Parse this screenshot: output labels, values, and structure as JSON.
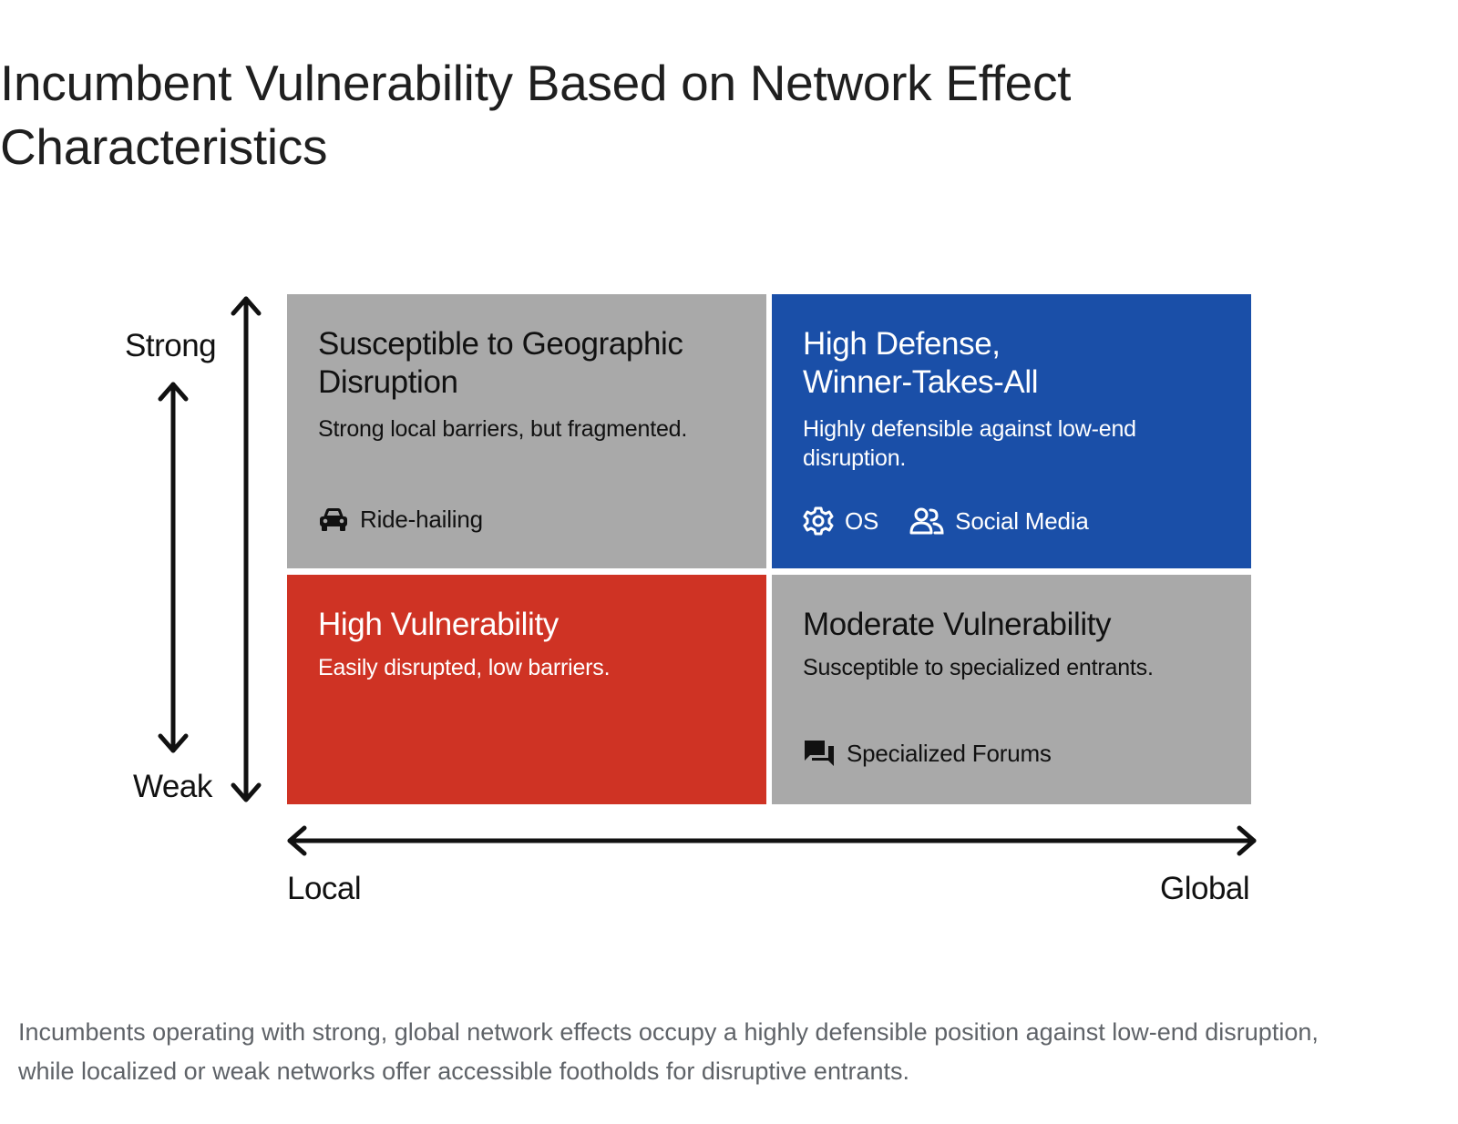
{
  "title": "Incumbent Vulnerability Based on Network Effect Characteristics",
  "y_axis": {
    "top_label": "Strong",
    "bottom_label": "Weak"
  },
  "x_axis": {
    "left_label": "Local",
    "right_label": "Global"
  },
  "quadrants": {
    "top_left": {
      "title": "Susceptible to Geographic Disruption",
      "description": "Strong local barriers, but fragmented.",
      "examples": [
        {
          "label": "Ride-hailing",
          "icon": "car-icon"
        }
      ],
      "color": "#a9a9a9"
    },
    "top_right": {
      "title": "High Defense, Winner-Takes-All",
      "description": "Highly defensible against low-end disruption.",
      "examples": [
        {
          "label": "OS",
          "icon": "gear-icon"
        },
        {
          "label": "Social Media",
          "icon": "people-icon"
        }
      ],
      "color": "#1a4fa8"
    },
    "bottom_left": {
      "title": "High Vulnerability",
      "description": "Easily disrupted, low barriers.",
      "examples": [],
      "color": "#cf3324"
    },
    "bottom_right": {
      "title": "Moderate Vulnerability",
      "description": "Susceptible to specialized entrants.",
      "examples": [
        {
          "label": "Specialized Forums",
          "icon": "forum-icon"
        }
      ],
      "color": "#a9a9a9"
    }
  },
  "caption": "Incumbents operating with strong, global network effects occupy a highly defensible position against low-end disruption, while localized or weak networks offer accessible footholds for disruptive entrants."
}
